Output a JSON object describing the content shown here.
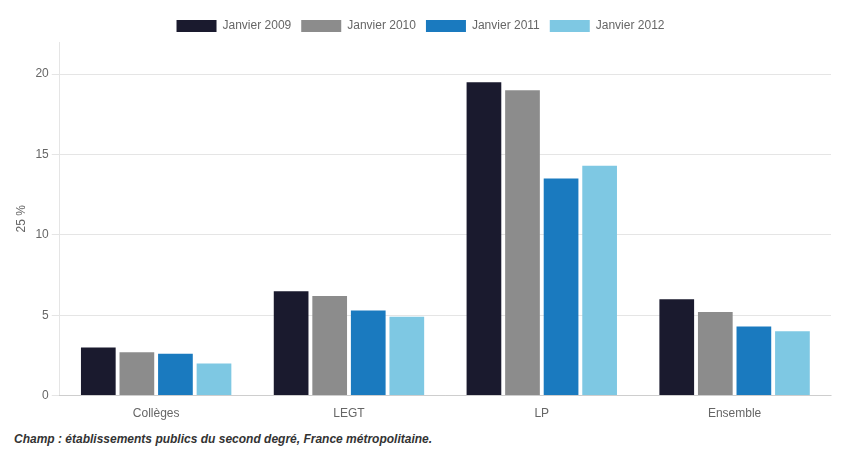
{
  "chart_data": {
    "type": "bar",
    "categories": [
      "Collèges",
      "LEGT",
      "LP",
      "Ensemble"
    ],
    "series": [
      {
        "name": "Janvier 2009",
        "color": "#1a1a2e",
        "values": [
          3.0,
          6.5,
          19.5,
          6.0
        ]
      },
      {
        "name": "Janvier 2010",
        "color": "#8c8c8c",
        "values": [
          2.7,
          6.2,
          19.0,
          5.2
        ]
      },
      {
        "name": "Janvier 2011",
        "color": "#1a7abf",
        "values": [
          2.6,
          5.3,
          13.5,
          4.3
        ]
      },
      {
        "name": "Janvier 2012",
        "color": "#7ec8e3",
        "values": [
          2.0,
          4.9,
          14.3,
          4.0
        ]
      }
    ],
    "ylabel": "25 %",
    "annotations": [
      "Champ : établissements publics du second degré, France métropolitaine."
    ],
    "ylim": [
      0,
      22
    ],
    "yticks": [
      0,
      5,
      10,
      15,
      20
    ],
    "grid": true,
    "legend": "top"
  }
}
